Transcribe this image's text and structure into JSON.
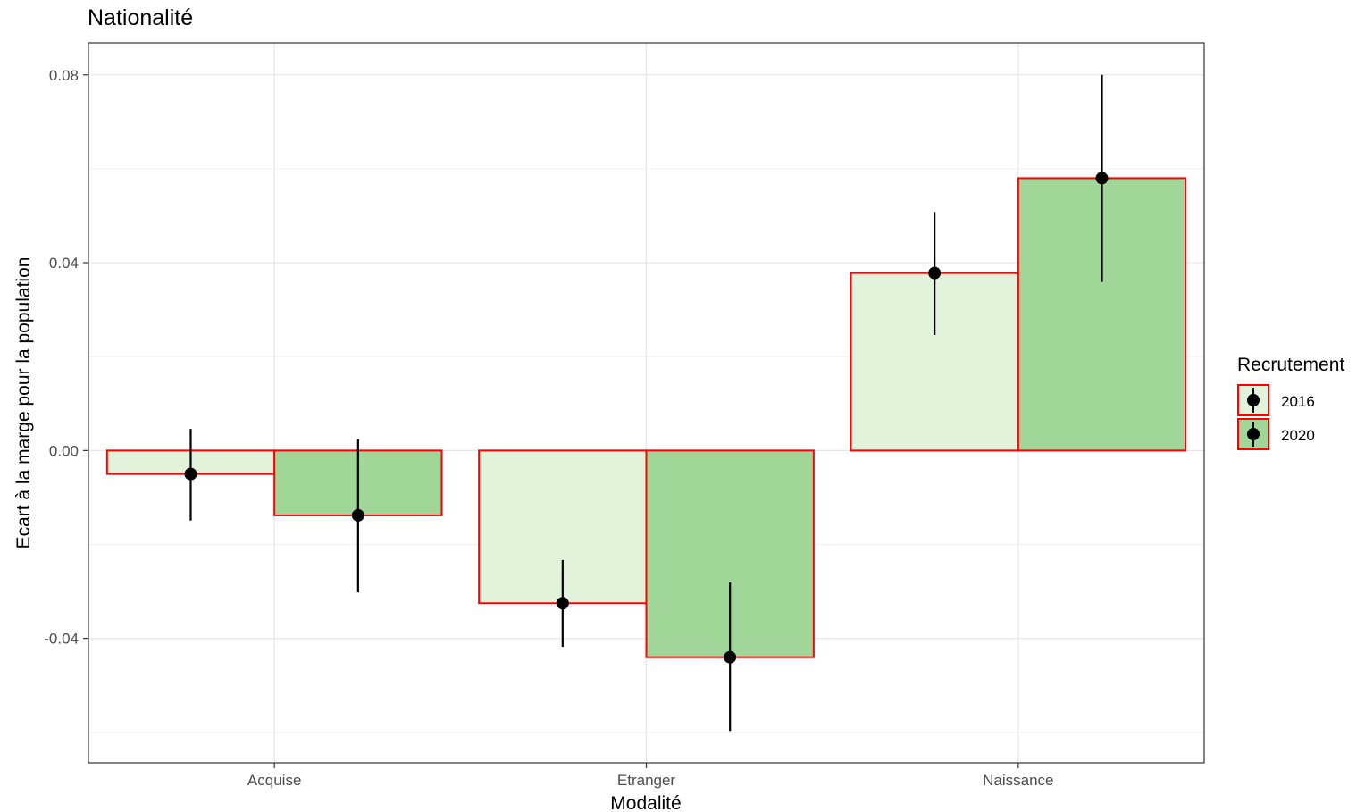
{
  "chart_data": {
    "type": "bar",
    "title": "Nationalité",
    "xlabel": "Modalité",
    "ylabel": "Ecart à la marge pour la population",
    "categories": [
      "Acquise",
      "Etranger",
      "Naissance"
    ],
    "ylim": [
      -0.0665,
      0.0868
    ],
    "yticks": [
      0.08,
      0.04,
      0.0,
      -0.04
    ],
    "ytick_labels": [
      "0.08",
      "0.04",
      "0.00",
      "-0.04"
    ],
    "grid": true,
    "legend": {
      "title": "Recrutement",
      "position": "right"
    },
    "series": [
      {
        "name": "2016",
        "fill": "#e2f3dc",
        "values": [
          -0.005,
          -0.0325,
          0.0378
        ],
        "error_low": [
          -0.0149,
          -0.0418,
          0.0246
        ],
        "error_high": [
          0.0046,
          -0.0233,
          0.0508
        ]
      },
      {
        "name": "2020",
        "fill": "#a1d699",
        "values": [
          -0.0138,
          -0.044,
          0.058
        ],
        "error_low": [
          -0.0302,
          -0.0597,
          0.0359
        ],
        "error_high": [
          0.0024,
          -0.0281,
          0.08
        ]
      }
    ],
    "bar_outline_color": "#ff0000",
    "point_color": "#000000"
  }
}
